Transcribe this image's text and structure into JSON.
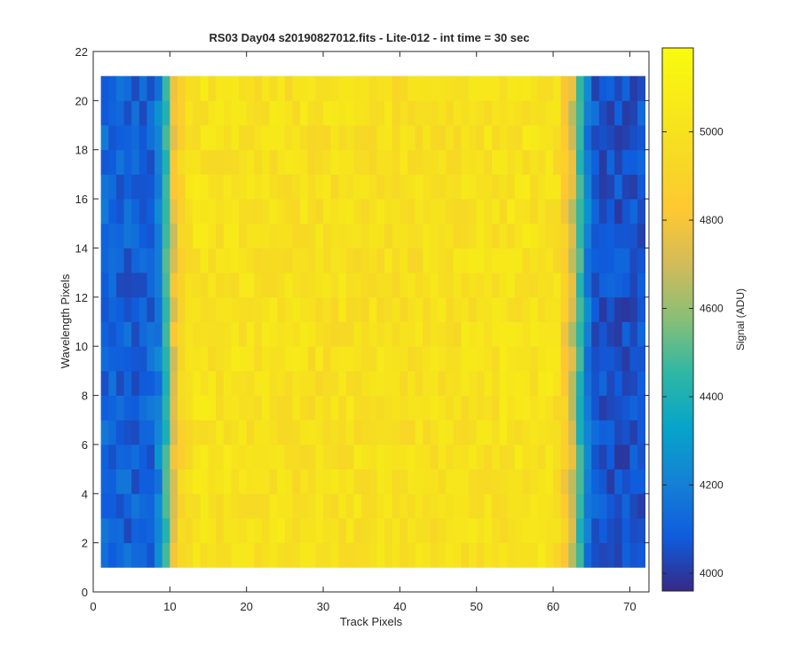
{
  "chart_data": {
    "type": "heatmap",
    "title": "RS03 Day04  s20190827012.fits - Lite-012 - int time = 30 sec",
    "xlabel": "Track Pixels",
    "ylabel": "Wavelength Pixels",
    "colorbar_label": "Signal (ADU)",
    "xlim": [
      0,
      72.5
    ],
    "ylim": [
      0,
      22
    ],
    "x_ticks": [
      0,
      10,
      20,
      30,
      40,
      50,
      60,
      70
    ],
    "y_ticks": [
      0,
      2,
      4,
      6,
      8,
      10,
      12,
      14,
      16,
      18,
      20,
      22
    ],
    "colorbar_range": [
      3960,
      5190
    ],
    "colorbar_ticks": [
      4000,
      4200,
      4400,
      4600,
      4800,
      5000
    ],
    "x_cells": [
      1,
      72
    ],
    "y_cells": [
      1,
      21
    ],
    "colormap": "parula",
    "profile": {
      "x": [
        1,
        2,
        3,
        4,
        5,
        6,
        7,
        8,
        9,
        10,
        11,
        12,
        13,
        14,
        15,
        16,
        17,
        18,
        19,
        20,
        21,
        22,
        23,
        24,
        25,
        26,
        27,
        28,
        29,
        30,
        31,
        32,
        33,
        34,
        35,
        36,
        37,
        38,
        39,
        40,
        41,
        42,
        43,
        44,
        45,
        46,
        47,
        48,
        49,
        50,
        51,
        52,
        53,
        54,
        55,
        56,
        57,
        58,
        59,
        60,
        61,
        62,
        63,
        64,
        65,
        66,
        67,
        68,
        69,
        70,
        71,
        72
      ],
      "signal": [
        4120,
        4110,
        4105,
        4100,
        4100,
        4100,
        4110,
        4200,
        4450,
        4750,
        4900,
        4980,
        5010,
        5010,
        5000,
        5000,
        5005,
        5000,
        5000,
        4995,
        5000,
        5000,
        5000,
        5000,
        4990,
        4990,
        5000,
        4990,
        4990,
        4985,
        4985,
        4990,
        4990,
        4985,
        4985,
        4985,
        4990,
        4985,
        4980,
        4980,
        4980,
        4985,
        4985,
        4985,
        4990,
        4990,
        4990,
        4995,
        4995,
        5000,
        5000,
        5000,
        5005,
        5010,
        5010,
        5010,
        5010,
        5005,
        5000,
        4980,
        4850,
        4700,
        4450,
        4200,
        4080,
        4060,
        4055,
        4055,
        4060,
        4065,
        4070,
        4080
      ],
      "noise_amplitude": 70
    }
  }
}
